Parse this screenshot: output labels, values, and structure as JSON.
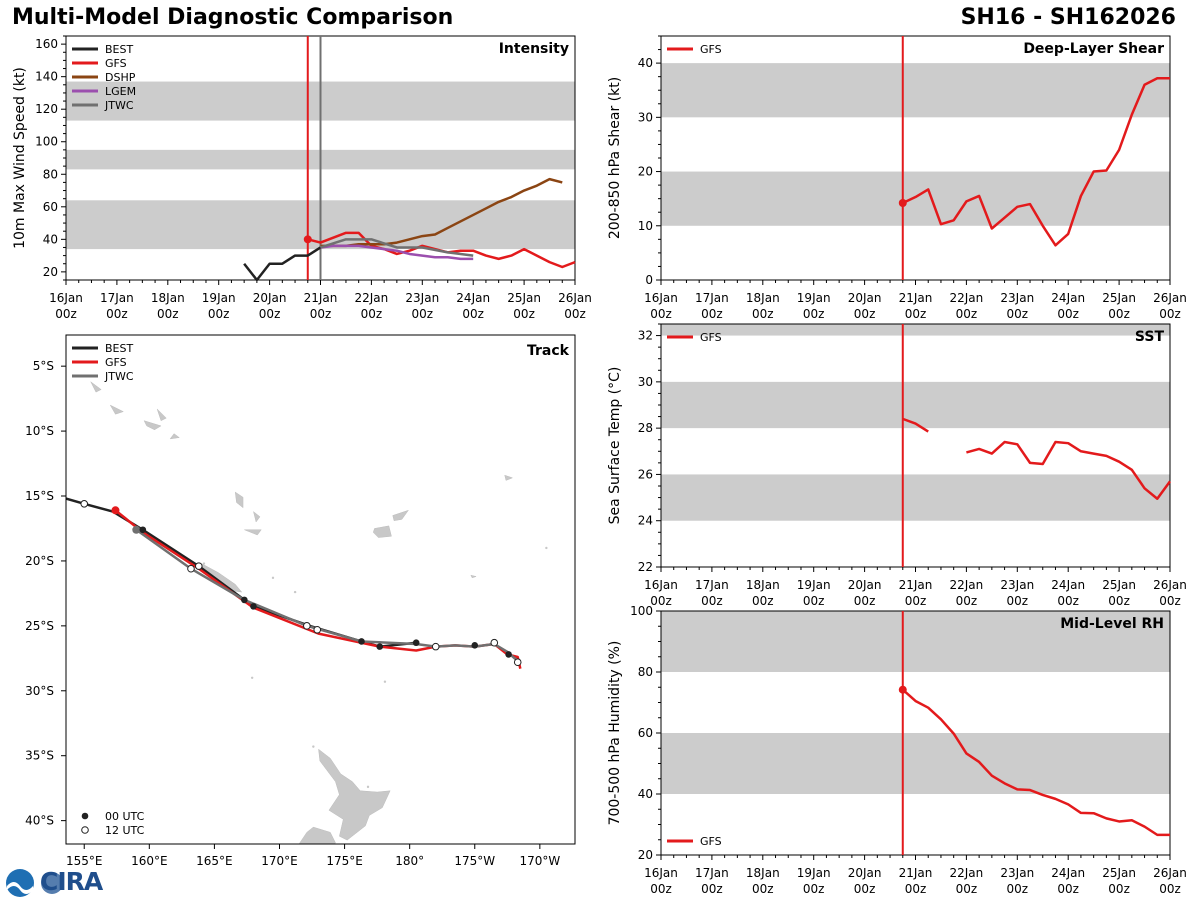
{
  "header": {
    "title": "Multi-Model Diagnostic Comparison",
    "storm_id": "SH16 - SH162026"
  },
  "logo": {
    "text": "CIRA"
  },
  "colors": {
    "BEST": "#222222",
    "GFS": "#e31a1c",
    "DSHP": "#8b4513",
    "LGEM": "#9b4fae",
    "JTWC": "#707070",
    "band": "#cccccc",
    "land": "#c8c8c8"
  },
  "time_ticks": [
    {
      "l1": "16Jan",
      "l2": "00z"
    },
    {
      "l1": "17Jan",
      "l2": "00z"
    },
    {
      "l1": "18Jan",
      "l2": "00z"
    },
    {
      "l1": "19Jan",
      "l2": "00z"
    },
    {
      "l1": "20Jan",
      "l2": "00z"
    },
    {
      "l1": "21Jan",
      "l2": "00z"
    },
    {
      "l1": "22Jan",
      "l2": "00z"
    },
    {
      "l1": "23Jan",
      "l2": "00z"
    },
    {
      "l1": "24Jan",
      "l2": "00z"
    },
    {
      "l1": "25Jan",
      "l2": "00z"
    },
    {
      "l1": "26Jan",
      "l2": "00z"
    }
  ],
  "chart_data": [
    {
      "id": "intensity",
      "type": "line",
      "title": "Intensity",
      "xlabel": "",
      "ylabel": "10m Max Wind Speed (kt)",
      "xlim": [
        0,
        10
      ],
      "ylim": [
        15,
        165
      ],
      "yticks": [
        20,
        40,
        60,
        80,
        100,
        120,
        140,
        160
      ],
      "bands": [
        [
          34,
          64
        ],
        [
          83,
          95
        ],
        [
          113,
          137
        ]
      ],
      "vlines": [
        {
          "x": 4.75,
          "color": "GFS"
        },
        {
          "x": 5.0,
          "color": "JTWC"
        }
      ],
      "markers": [
        {
          "x": 4.75,
          "y": 40,
          "color": "GFS"
        }
      ],
      "legend": [
        "BEST",
        "GFS",
        "DSHP",
        "LGEM",
        "JTWC"
      ],
      "series": [
        {
          "name": "BEST",
          "x": [
            3.5,
            3.75,
            4.0,
            4.25,
            4.5,
            4.75,
            5.0
          ],
          "y": [
            25,
            15,
            25,
            25,
            30,
            30,
            35
          ]
        },
        {
          "name": "GFS",
          "x": [
            4.75,
            5.0,
            5.25,
            5.5,
            5.75,
            6.0,
            6.25,
            6.5,
            6.75,
            7.0,
            7.25,
            7.5,
            7.75,
            8.0,
            8.25,
            8.5,
            8.75,
            9.0,
            9.25,
            9.5,
            9.75,
            10.0
          ],
          "y": [
            40,
            38,
            41,
            44,
            44,
            36,
            34,
            31,
            33,
            36,
            34,
            32,
            33,
            33,
            30,
            28,
            30,
            34,
            30,
            26,
            23,
            26
          ]
        },
        {
          "name": "DSHP",
          "x": [
            5.0,
            5.25,
            5.5,
            5.75,
            6.0,
            6.25,
            6.5,
            6.75,
            7.0,
            7.25,
            7.5,
            7.75,
            8.0,
            8.25,
            8.5,
            8.75,
            9.0,
            9.25,
            9.5,
            9.75
          ],
          "y": [
            36,
            36,
            36,
            37,
            37,
            37,
            38,
            40,
            42,
            43,
            47,
            51,
            55,
            59,
            63,
            66,
            70,
            73,
            77,
            75
          ]
        },
        {
          "name": "LGEM",
          "x": [
            5.0,
            5.25,
            5.5,
            5.75,
            6.0,
            6.25,
            6.5,
            6.75,
            7.0,
            7.25,
            7.5,
            7.75,
            8.0
          ],
          "y": [
            35,
            36,
            36,
            36,
            35,
            34,
            33,
            31,
            30,
            29,
            29,
            28,
            28
          ]
        },
        {
          "name": "JTWC",
          "x": [
            5.0,
            5.5,
            5.75,
            6.0,
            6.5,
            7.0,
            7.5,
            8.0
          ],
          "y": [
            35,
            40,
            40,
            40,
            35,
            35,
            32,
            30
          ]
        }
      ]
    },
    {
      "id": "shear",
      "type": "line",
      "title": "Deep-Layer Shear",
      "xlabel": "",
      "ylabel": "200-850 hPa Shear (kt)",
      "xlim": [
        0,
        10
      ],
      "ylim": [
        0,
        45
      ],
      "yticks": [
        0,
        10,
        20,
        30,
        40
      ],
      "bands": [
        [
          10,
          20
        ],
        [
          30,
          40
        ]
      ],
      "vlines": [
        {
          "x": 4.75,
          "color": "GFS"
        }
      ],
      "markers": [
        {
          "x": 4.75,
          "y": 14.2,
          "color": "GFS"
        }
      ],
      "legend": [
        "GFS"
      ],
      "series": [
        {
          "name": "GFS",
          "x": [
            4.75,
            5.0,
            5.25,
            5.5,
            5.75,
            6.0,
            6.25,
            6.5,
            6.75,
            7.0,
            7.25,
            7.5,
            7.75,
            8.0,
            8.25,
            8.5,
            8.75,
            9.0,
            9.25,
            9.5,
            9.75,
            10.0
          ],
          "y": [
            14.2,
            15.3,
            16.7,
            10.3,
            11.0,
            14.5,
            15.5,
            9.5,
            11.5,
            13.5,
            14.0,
            10.0,
            6.4,
            8.5,
            15.5,
            20.0,
            20.2,
            24.0,
            30.5,
            36.0,
            37.2,
            37.2
          ]
        }
      ]
    },
    {
      "id": "track",
      "type": "map",
      "title": "Track",
      "xlim": [
        153.6,
        192.7
      ],
      "ylim": [
        -41.8,
        -2.6
      ],
      "xticks": [
        {
          "v": 155,
          "l": "155°E"
        },
        {
          "v": 160,
          "l": "160°E"
        },
        {
          "v": 165,
          "l": "165°E"
        },
        {
          "v": 170,
          "l": "170°E"
        },
        {
          "v": 175,
          "l": "175°E"
        },
        {
          "v": 180,
          "l": "180°"
        },
        {
          "v": 185,
          "l": "175°W"
        },
        {
          "v": 190,
          "l": "170°W"
        }
      ],
      "yticks": [
        {
          "v": -5,
          "l": "5°S"
        },
        {
          "v": -10,
          "l": "10°S"
        },
        {
          "v": -15,
          "l": "15°S"
        },
        {
          "v": -20,
          "l": "20°S"
        },
        {
          "v": -25,
          "l": "25°S"
        },
        {
          "v": -30,
          "l": "30°S"
        },
        {
          "v": -35,
          "l": "35°S"
        },
        {
          "v": -40,
          "l": "40°S"
        }
      ],
      "legend": [
        "BEST",
        "GFS",
        "JTWC"
      ],
      "marker_legend": [
        "00 UTC",
        "12 UTC"
      ],
      "series": [
        {
          "name": "BEST",
          "lon": [
            153.6,
            155.0,
            157.2,
            159.5,
            163.8,
            167.3,
            168.0,
            172.3,
            176.3,
            177.7,
            180.5
          ],
          "lat": [
            -15.2,
            -15.6,
            -16.2,
            -17.6,
            -20.4,
            -23.0,
            -23.5,
            -25.0,
            -26.2,
            -26.6,
            -26.3
          ]
        },
        {
          "name": "GFS",
          "lon": [
            157.4,
            159.5,
            163.8,
            168.0,
            173.0,
            177.7,
            180.5,
            182.0,
            183.5,
            185.0,
            186.5,
            187.5,
            188.3,
            188.5
          ],
          "lat": [
            -16.1,
            -17.8,
            -20.6,
            -23.6,
            -25.6,
            -26.6,
            -26.9,
            -26.6,
            -26.5,
            -26.6,
            -26.4,
            -27.2,
            -27.4,
            -28.3
          ]
        },
        {
          "name": "JTWC",
          "lon": [
            159.0,
            163.2,
            167.3,
            172.1,
            176.3,
            180.5,
            182.0,
            183.5,
            185.0,
            186.5,
            187.5,
            188.4
          ],
          "lat": [
            -17.6,
            -20.6,
            -23.0,
            -25.0,
            -26.2,
            -26.4,
            -26.6,
            -26.5,
            -26.6,
            -26.4,
            -27.0,
            -27.8
          ]
        }
      ],
      "dots_00utc": [
        {
          "lon": 159.5,
          "lat": -17.6
        },
        {
          "lon": 167.3,
          "lat": -23.0
        },
        {
          "lon": 168.0,
          "lat": -23.5
        },
        {
          "lon": 176.3,
          "lat": -26.2
        },
        {
          "lon": 177.7,
          "lat": -26.6
        },
        {
          "lon": 180.5,
          "lat": -26.3
        },
        {
          "lon": 185.0,
          "lat": -26.5
        },
        {
          "lon": 187.6,
          "lat": -27.2
        }
      ],
      "dots_12utc": [
        {
          "lon": 155.0,
          "lat": -15.6
        },
        {
          "lon": 163.8,
          "lat": -20.4
        },
        {
          "lon": 163.2,
          "lat": -20.6
        },
        {
          "lon": 172.1,
          "lat": -25.0
        },
        {
          "lon": 172.9,
          "lat": -25.3
        },
        {
          "lon": 182.0,
          "lat": -26.6
        },
        {
          "lon": 186.5,
          "lat": -26.3
        },
        {
          "lon": 188.3,
          "lat": -27.8
        }
      ],
      "gfs_start": {
        "lon": 157.4,
        "lat": -16.1
      },
      "jtwc_start": {
        "lon": 159.0,
        "lat": -17.6
      }
    },
    {
      "id": "sst",
      "type": "line",
      "title": "SST",
      "xlabel": "",
      "ylabel": "Sea Surface Temp (°C)",
      "xlim": [
        0,
        10
      ],
      "ylim": [
        22,
        32.5
      ],
      "yticks": [
        22,
        24,
        26,
        28,
        30,
        32
      ],
      "bands": [
        [
          24,
          26
        ],
        [
          28,
          30
        ],
        [
          32,
          32.5
        ]
      ],
      "vlines": [
        {
          "x": 4.75,
          "color": "GFS"
        }
      ],
      "markers": [],
      "legend": [
        "GFS"
      ],
      "series": [
        {
          "name": "GFS",
          "x": [
            4.75,
            5.0,
            5.25
          ],
          "y": [
            28.4,
            28.2,
            27.85
          ]
        },
        {
          "name": "GFS",
          "x": [
            6.0,
            6.25,
            6.5,
            6.75,
            7.0,
            7.25,
            7.5,
            7.75,
            8.0,
            8.25,
            8.5,
            8.75,
            9.0,
            9.25,
            9.5,
            9.75,
            10.0
          ],
          "y": [
            26.95,
            27.1,
            26.9,
            27.4,
            27.3,
            26.5,
            26.45,
            27.4,
            27.35,
            27.0,
            26.9,
            26.8,
            26.55,
            26.2,
            25.4,
            24.95,
            25.7
          ]
        }
      ]
    },
    {
      "id": "rh",
      "type": "line",
      "title": "Mid-Level RH",
      "xlabel": "",
      "ylabel": "700-500 hPa Humidity (%)",
      "xlim": [
        0,
        10
      ],
      "ylim": [
        20,
        100
      ],
      "yticks": [
        20,
        40,
        60,
        80,
        100
      ],
      "bands": [
        [
          40,
          60
        ],
        [
          80,
          100
        ]
      ],
      "vlines": [
        {
          "x": 4.75,
          "color": "GFS"
        }
      ],
      "markers": [
        {
          "x": 4.75,
          "y": 74.2,
          "color": "GFS"
        }
      ],
      "legend": [
        "GFS"
      ],
      "legend_position": "bottom-left",
      "series": [
        {
          "name": "GFS",
          "x": [
            4.75,
            5.0,
            5.25,
            5.5,
            5.75,
            6.0,
            6.25,
            6.5,
            6.75,
            7.0,
            7.25,
            7.5,
            7.75,
            8.0,
            8.25,
            8.5,
            8.75,
            9.0,
            9.25,
            9.5,
            9.75,
            10.0
          ],
          "y": [
            74.2,
            70.5,
            68.3,
            64.5,
            59.8,
            53.3,
            50.5,
            46.0,
            43.5,
            41.5,
            41.3,
            39.7,
            38.4,
            36.6,
            33.8,
            33.7,
            32.0,
            31.0,
            31.4,
            29.3,
            26.6,
            26.6
          ]
        }
      ]
    }
  ]
}
